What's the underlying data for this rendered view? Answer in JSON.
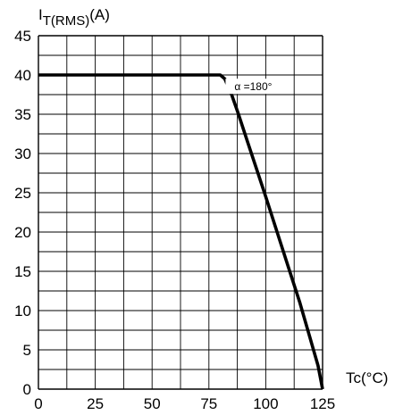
{
  "chart_data": {
    "type": "line",
    "ylabel_main": "I",
    "ylabel_sub": "T(RMS)",
    "ylabel_unit": "(A)",
    "xlabel": "Tc(°C)",
    "xlim": [
      0,
      125
    ],
    "ylim": [
      0,
      45
    ],
    "x_ticks": [
      0,
      25,
      50,
      75,
      100,
      125
    ],
    "y_ticks": [
      0,
      5,
      10,
      15,
      20,
      25,
      30,
      35,
      40,
      45
    ],
    "x_minor_step": 12.5,
    "y_minor_step": 2.5,
    "grid": true,
    "series": [
      {
        "name": "α =180°",
        "x": [
          0,
          80,
          82,
          85,
          88,
          92,
          96,
          100,
          105,
          110,
          115,
          120,
          123,
          125
        ],
        "y": [
          40,
          40,
          39.5,
          37.5,
          35,
          31.5,
          28,
          24.5,
          20,
          15.5,
          11,
          6,
          3,
          0
        ]
      }
    ],
    "annotation": {
      "text": "α =180°",
      "x": 94.5,
      "y": 38.5
    }
  }
}
